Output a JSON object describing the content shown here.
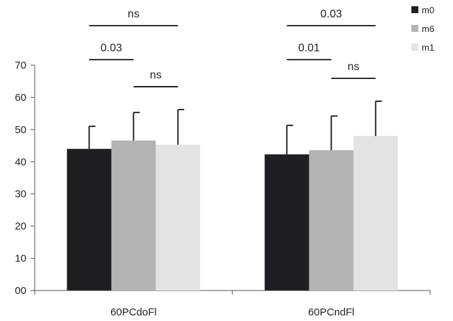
{
  "chart_data": {
    "type": "bar",
    "categories": [
      "60PCdoFl",
      "60PCndFl"
    ],
    "series": [
      {
        "name": "m0",
        "color": "#1f1e23",
        "values": [
          44.0,
          42.3
        ],
        "error": [
          7.0,
          9.0
        ]
      },
      {
        "name": "m6",
        "color": "#b3b3b6",
        "values": [
          46.6,
          43.6
        ],
        "error": [
          8.7,
          10.6
        ]
      },
      {
        "name": "m1",
        "color": "#e3e3e5",
        "values": [
          45.3,
          48.0
        ],
        "error": [
          10.9,
          10.8
        ]
      }
    ],
    "y_ticks": [
      "00",
      "10",
      "20",
      "30",
      "40",
      "50",
      "60",
      "70"
    ],
    "ylim": [
      0,
      70
    ],
    "grid": false,
    "legend_position": "top-right",
    "significance": [
      {
        "category": 0,
        "from": "m0",
        "to": "m6",
        "label": "0.03"
      },
      {
        "category": 0,
        "from": "m6",
        "to": "m1",
        "label": "ns"
      },
      {
        "category": 0,
        "from": "m0",
        "to": "m1",
        "label": "ns"
      },
      {
        "category": 1,
        "from": "m0",
        "to": "m6",
        "label": "0.01"
      },
      {
        "category": 1,
        "from": "m6",
        "to": "m1",
        "label": "ns"
      },
      {
        "category": 1,
        "from": "m0",
        "to": "m1",
        "label": "0.03"
      }
    ]
  }
}
